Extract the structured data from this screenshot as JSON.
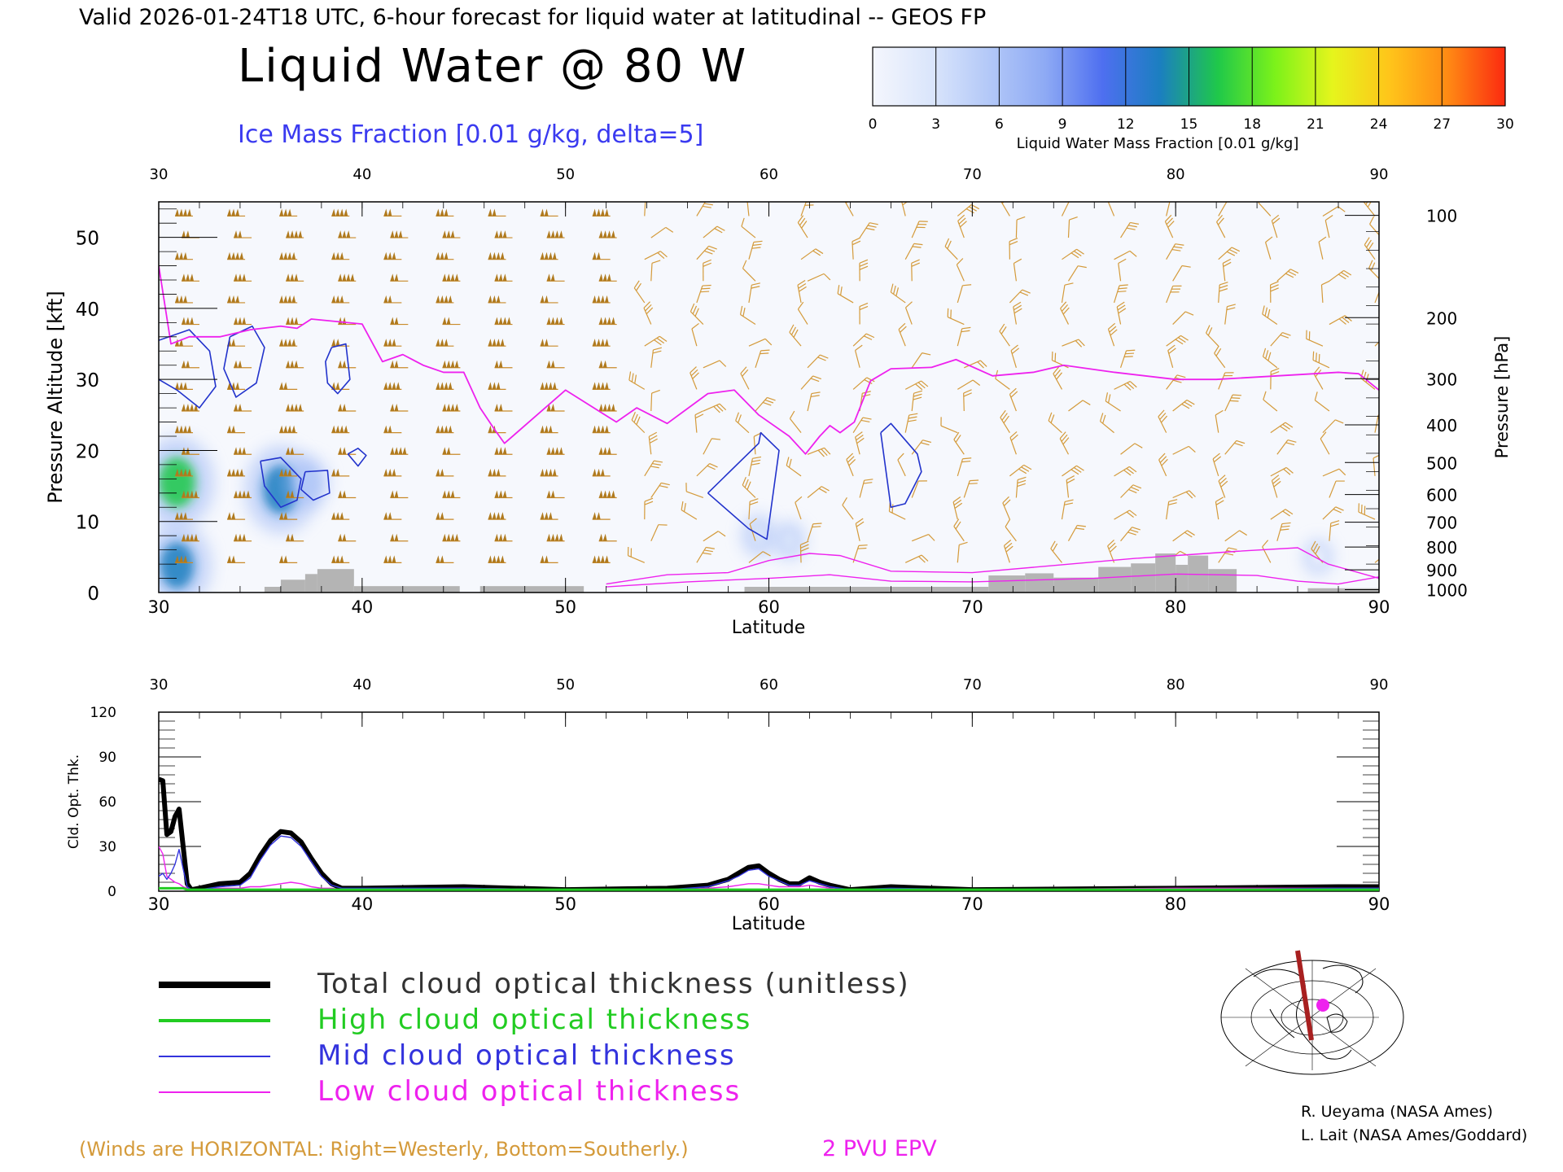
{
  "header": {
    "valid_line": "Valid 2026-01-24T18 UTC, 6-hour forecast for liquid water at latitudinal -- GEOS FP",
    "title": "Liquid Water @ 80 W",
    "subtitle": "Ice Mass Fraction [0.01 g/kg, delta=5]"
  },
  "colorbar": {
    "ticks": [
      "0",
      "3",
      "6",
      "9",
      "12",
      "15",
      "18",
      "21",
      "24",
      "27",
      "30"
    ],
    "label": "Liquid Water Mass Fraction [0.01 g/kg]",
    "colors": [
      "#f4f6fd",
      "#dbe6fb",
      "#b4c9f8",
      "#8eaaf4",
      "#4e6ff0",
      "#1b7fc0",
      "#1fc84a",
      "#7cf21a",
      "#e6f51c",
      "#ffc41a",
      "#ff8a14",
      "#fb2a10"
    ]
  },
  "wind_note": "(Winds are HORIZONTAL: Right=Westerly, Bottom=Southerly.)",
  "epv_label": "2 PVU EPV",
  "credits": [
    "R. Ueyama (NASA Ames)",
    "L. Lait (NASA Ames/Goddard)"
  ],
  "legend": [
    {
      "label": "Total cloud optical thickness (unitless)",
      "color": "#000000"
    },
    {
      "label": "High cloud optical thickness",
      "color": "#22cc22"
    },
    {
      "label": "Mid cloud optical thickness",
      "color": "#3333dd"
    },
    {
      "label": "Low cloud optical thickness",
      "color": "#ee22ee"
    }
  ],
  "chart_data": [
    {
      "type": "heatmap",
      "xlabel": "Latitude",
      "ylabel": "Pressure Altitude [kft]",
      "ylabel_right": "Pressure [hPa]",
      "xlim": [
        30,
        90
      ],
      "ylim": [
        0,
        55
      ],
      "x_ticks": [
        "30",
        "40",
        "50",
        "60",
        "70",
        "80",
        "90"
      ],
      "y_ticks": [
        "0",
        "10",
        "20",
        "30",
        "40",
        "50"
      ],
      "pressure_ticks": [
        {
          "label": "100",
          "kft": 53.1
        },
        {
          "label": "200",
          "kft": 38.7
        },
        {
          "label": "300",
          "kft": 30.1
        },
        {
          "label": "400",
          "kft": 23.6
        },
        {
          "label": "500",
          "kft": 18.3
        },
        {
          "label": "600",
          "kft": 13.8
        },
        {
          "label": "700",
          "kft": 9.9
        },
        {
          "label": "800",
          "kft": 6.4
        },
        {
          "label": "900",
          "kft": 3.2
        },
        {
          "label": "1000",
          "kft": 0.4
        }
      ],
      "liquid_water_blobs": [
        {
          "lat": 30.9,
          "kft": 15.5,
          "value": 17
        },
        {
          "lat": 30.9,
          "kft": 3.8,
          "value": 15
        },
        {
          "lat": 36.0,
          "kft": 14.5,
          "value": 16
        },
        {
          "lat": 37.3,
          "kft": 15.5,
          "value": 6
        },
        {
          "lat": 59.5,
          "kft": 8.0,
          "value": 3
        },
        {
          "lat": 61.0,
          "kft": 7.3,
          "value": 2
        },
        {
          "lat": 87.0,
          "kft": 5.0,
          "value": 1
        }
      ],
      "epv_2pvu": {
        "lat": [
          30,
          30.6,
          31.5,
          33,
          34.5,
          36,
          36.8,
          37.5,
          40,
          41,
          42,
          43,
          44,
          45,
          45.8,
          46.5,
          47,
          50,
          52.5,
          53.5,
          55,
          57,
          58.3,
          59.5,
          61,
          61.8,
          62.5,
          63,
          63.5,
          64.2,
          65,
          66,
          68,
          69.2,
          71,
          73,
          74.5,
          77,
          80,
          82,
          85,
          88,
          89,
          90
        ],
        "kft": [
          46,
          35,
          36,
          36,
          37,
          37.5,
          37.2,
          38.5,
          37.8,
          32.5,
          33.5,
          32,
          31,
          31,
          26,
          23,
          21,
          28.5,
          24,
          26,
          23.8,
          28,
          28.5,
          25,
          22,
          19.5,
          22,
          23.5,
          22.5,
          24,
          29.8,
          31.5,
          31.7,
          32.8,
          30.5,
          31,
          32,
          31,
          30,
          30,
          30.5,
          31,
          30.8,
          28.5
        ]
      },
      "ice_contours": [
        {
          "lat": [
            30.0,
            31.5,
            32.5,
            32.8,
            32.0,
            30.9,
            30.0
          ],
          "kft": [
            35.5,
            37,
            34,
            29,
            26,
            28.5,
            30
          ]
        },
        {
          "lat": [
            33.5,
            34.6,
            35.2,
            34.8,
            33.8,
            33.2,
            33.5
          ],
          "kft": [
            36,
            37.5,
            34.5,
            29.5,
            27.5,
            31.5,
            36
          ]
        },
        {
          "lat": [
            38.5,
            39.2,
            39.4,
            38.8,
            38.3,
            38.2,
            38.5
          ],
          "kft": [
            34.5,
            35,
            30,
            28,
            29.5,
            32.5,
            34.5
          ]
        },
        {
          "lat": [
            35.0,
            36.0,
            37.0,
            36.8,
            36.0,
            35.2,
            35.0
          ],
          "kft": [
            18.5,
            19.0,
            16.0,
            13.0,
            12.0,
            15.0,
            18.5
          ]
        },
        {
          "lat": [
            37.2,
            38.3,
            38.4,
            37.6,
            37.0,
            37.2
          ],
          "kft": [
            17.0,
            17.2,
            14.0,
            13.0,
            14.5,
            17.0
          ]
        },
        {
          "lat": [
            39.3,
            39.8,
            40.2,
            39.8,
            39.3
          ],
          "kft": [
            19.5,
            20.3,
            19.3,
            17.8,
            19.5
          ]
        },
        {
          "lat": [
            57.0,
            59.5,
            59.6,
            60.5,
            59.9,
            59.0,
            57.0
          ],
          "kft": [
            14.0,
            21.0,
            22.5,
            20.0,
            7.5,
            9.0,
            14.0
          ]
        },
        {
          "lat": [
            65.5,
            66.0,
            67.3,
            67.5,
            66.7,
            66.0,
            65.5
          ],
          "kft": [
            22.5,
            23.8,
            19.5,
            17.0,
            12.5,
            12.0,
            22.5
          ]
        }
      ],
      "terrain": [
        {
          "lat0": 35.2,
          "lat1": 36.0,
          "kft": 0.8
        },
        {
          "lat0": 36.0,
          "lat1": 37.2,
          "kft": 1.8
        },
        {
          "lat0": 37.2,
          "lat1": 37.8,
          "kft": 2.6
        },
        {
          "lat0": 37.8,
          "lat1": 39.6,
          "kft": 3.3
        },
        {
          "lat0": 39.6,
          "lat1": 44.8,
          "kft": 0.9
        },
        {
          "lat0": 45.8,
          "lat1": 50.9,
          "kft": 0.9
        },
        {
          "lat0": 58.8,
          "lat1": 70.8,
          "kft": 0.8
        },
        {
          "lat0": 70.8,
          "lat1": 72.6,
          "kft": 2.4
        },
        {
          "lat0": 72.6,
          "lat1": 74.0,
          "kft": 2.7
        },
        {
          "lat0": 74.0,
          "lat1": 76.2,
          "kft": 2.1
        },
        {
          "lat0": 76.2,
          "lat1": 77.8,
          "kft": 3.6
        },
        {
          "lat0": 77.8,
          "lat1": 79.0,
          "kft": 4.1
        },
        {
          "lat0": 79.0,
          "lat1": 80.0,
          "kft": 5.5
        },
        {
          "lat0": 80.0,
          "lat1": 80.6,
          "kft": 3.9
        },
        {
          "lat0": 80.6,
          "lat1": 81.6,
          "kft": 5.2
        },
        {
          "lat0": 81.6,
          "lat1": 83.0,
          "kft": 3.3
        },
        {
          "lat0": 86.5,
          "lat1": 90.0,
          "kft": 0.6
        }
      ]
    },
    {
      "type": "line",
      "xlabel": "Latitude",
      "ylabel": "Cld. Opt. Thk.",
      "xlim": [
        30,
        90
      ],
      "ylim": [
        0,
        120
      ],
      "x_ticks": [
        "30",
        "40",
        "50",
        "60",
        "70",
        "80",
        "90"
      ],
      "y_ticks": [
        "0",
        "30",
        "60",
        "90",
        "120"
      ],
      "x": [
        30,
        30.2,
        30.4,
        30.6,
        30.8,
        31,
        31.2,
        31.4,
        31.6,
        32,
        33,
        34,
        34.5,
        35,
        35.5,
        36,
        36.5,
        37,
        37.5,
        38,
        38.5,
        39,
        40,
        45,
        50,
        55,
        57,
        58,
        58.5,
        59,
        59.5,
        60,
        60.5,
        61,
        61.5,
        62,
        62.5,
        63,
        64,
        66,
        70,
        80,
        88,
        90
      ],
      "series": [
        {
          "name": "Total cloud optical thickness (unitless)",
          "values": [
            75,
            74,
            38,
            40,
            50,
            55,
            30,
            5,
            1,
            2,
            5,
            6,
            12,
            24,
            34,
            40,
            39,
            33,
            22,
            12,
            5,
            2,
            2,
            3,
            1,
            2,
            4,
            8,
            12,
            16,
            17,
            12,
            8,
            5,
            5,
            9,
            6,
            4,
            1,
            3,
            1,
            2,
            3,
            3
          ]
        },
        {
          "name": "High cloud optical thickness",
          "values": [
            2,
            2,
            2,
            2,
            2,
            2,
            2,
            1,
            1,
            1,
            1,
            1,
            1,
            1,
            1,
            1,
            1,
            1,
            1,
            1,
            1,
            1,
            1,
            1,
            1,
            1,
            1,
            1,
            1,
            1,
            1,
            1,
            1,
            1,
            1,
            1,
            1,
            1,
            1,
            1,
            1,
            1,
            1,
            1
          ]
        },
        {
          "name": "Mid cloud optical thickness",
          "values": [
            10,
            12,
            8,
            12,
            18,
            28,
            15,
            3,
            1,
            1,
            3,
            4,
            9,
            21,
            31,
            37,
            36,
            30,
            20,
            10,
            4,
            2,
            2,
            2,
            1,
            1,
            3,
            7,
            10,
            14,
            15,
            10,
            7,
            4,
            4,
            7,
            5,
            3,
            1,
            2,
            1,
            1,
            2,
            2
          ]
        },
        {
          "name": "Low cloud optical thickness",
          "values": [
            30,
            25,
            10,
            8,
            6,
            5,
            3,
            2,
            1,
            1,
            2,
            2,
            3,
            3,
            4,
            5,
            6,
            5,
            3,
            2,
            2,
            1,
            1,
            2,
            1,
            1,
            2,
            3,
            4,
            5,
            5,
            4,
            3,
            3,
            3,
            4,
            3,
            2,
            1,
            1,
            1,
            2,
            2,
            2
          ]
        }
      ]
    }
  ]
}
